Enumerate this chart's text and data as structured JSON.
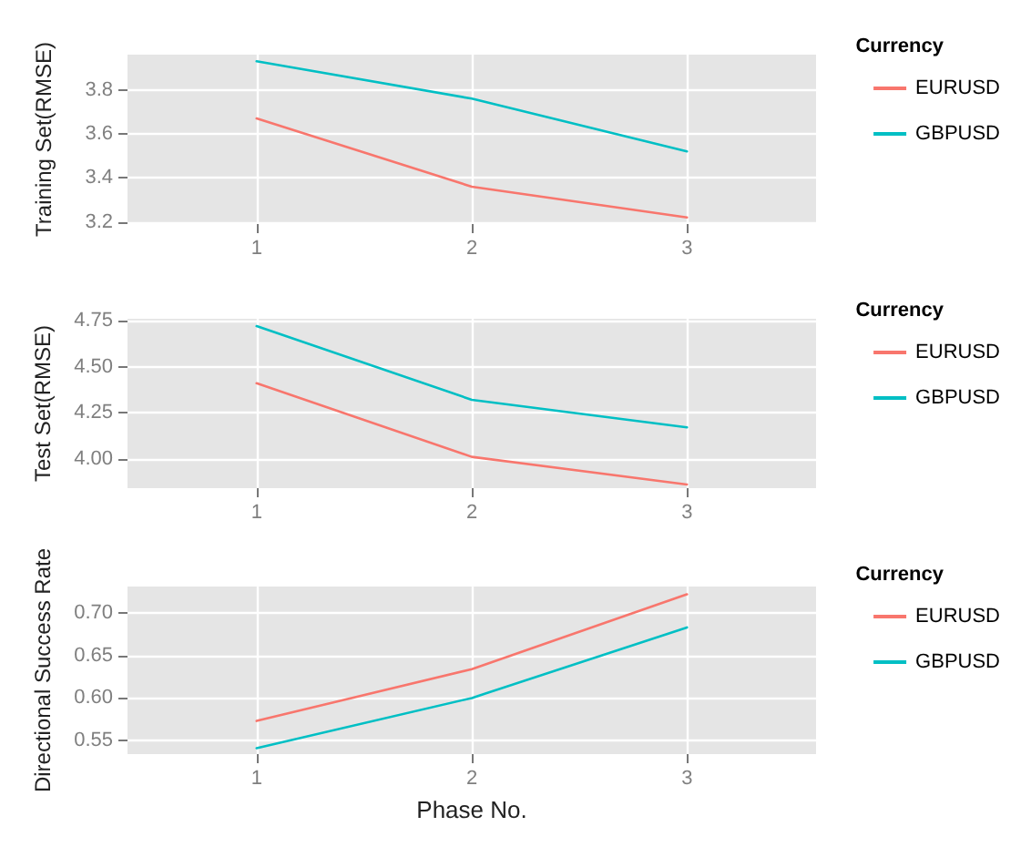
{
  "chart_data": [
    {
      "type": "line",
      "ylabel": "Training Set(RMSE)",
      "legend_title": "Currency",
      "x": [
        1,
        2,
        3
      ],
      "xlim": [
        0.4,
        3.6
      ],
      "xticks": [
        1,
        2,
        3
      ],
      "ylim": [
        3.19,
        3.96
      ],
      "yticks": [
        3.2,
        3.4,
        3.6,
        3.8
      ],
      "grid": true,
      "legend": "right",
      "series": [
        {
          "name": "EURUSD",
          "color": "#f8766d",
          "values": [
            3.67,
            3.36,
            3.22
          ]
        },
        {
          "name": "GBPUSD",
          "color": "#00bfc4",
          "values": [
            3.93,
            3.76,
            3.52
          ]
        }
      ]
    },
    {
      "type": "line",
      "ylabel": "Test Set(RMSE)",
      "legend_title": "Currency",
      "x": [
        1,
        2,
        3
      ],
      "xlim": [
        0.4,
        3.6
      ],
      "xticks": [
        1,
        2,
        3
      ],
      "ylim": [
        3.84,
        4.76
      ],
      "yticks": [
        {
          "value": 4,
          "label": "4.00"
        },
        4.25,
        {
          "value": 4.5,
          "label": "4.50"
        },
        4.75
      ],
      "grid": true,
      "legend": "right",
      "series": [
        {
          "name": "EURUSD",
          "color": "#f8766d",
          "values": [
            4.41,
            4.01,
            3.86
          ]
        },
        {
          "name": "GBPUSD",
          "color": "#00bfc4",
          "values": [
            4.72,
            4.32,
            4.17
          ]
        }
      ]
    },
    {
      "type": "line",
      "ylabel": "Directional Success Rate",
      "xlabel": "Phase No.",
      "legend_title": "Currency",
      "x": [
        1,
        2,
        3
      ],
      "xlim": [
        0.4,
        3.6
      ],
      "xticks": [
        1,
        2,
        3
      ],
      "ylim": [
        0.534,
        0.731
      ],
      "yticks": [
        0.55,
        {
          "value": 0.6,
          "label": "0.60"
        },
        0.65,
        {
          "value": 0.7,
          "label": "0.70"
        }
      ],
      "grid": true,
      "legend": "right",
      "series": [
        {
          "name": "EURUSD",
          "color": "#f8766d",
          "values": [
            0.573,
            0.634,
            0.722
          ]
        },
        {
          "name": "GBPUSD",
          "color": "#00bfc4",
          "values": [
            0.541,
            0.6,
            0.683
          ]
        }
      ]
    }
  ]
}
